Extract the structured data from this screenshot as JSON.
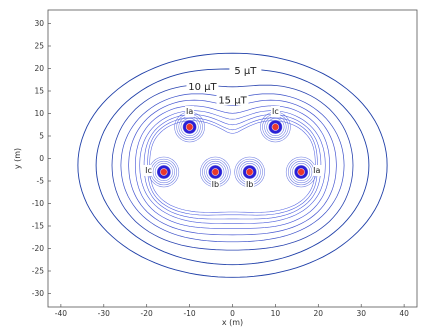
{
  "chart_data": {
    "type": "contour",
    "xlabel": "x (m)",
    "ylabel": "y (m)",
    "xlim": [
      -43,
      43
    ],
    "ylim": [
      -33,
      33
    ],
    "x_ticks": [
      -40,
      -30,
      -20,
      -10,
      0,
      10,
      20,
      30,
      40
    ],
    "y_ticks": [
      -30,
      -25,
      -20,
      -15,
      -10,
      -5,
      0,
      5,
      10,
      15,
      20,
      25,
      30
    ],
    "grid": false,
    "conductors": [
      {
        "label": "Ia",
        "x": -10,
        "y": 7
      },
      {
        "label": "Ic",
        "x": 10,
        "y": 7
      },
      {
        "label": "Ic",
        "x": -16,
        "y": -3
      },
      {
        "label": "Ib",
        "x": -4,
        "y": -3
      },
      {
        "label": "Ib",
        "x": 4,
        "y": -3
      },
      {
        "label": "Ia",
        "x": 16,
        "y": -3
      }
    ],
    "contour_labels": [
      {
        "text": "5 µT",
        "x": 3,
        "y": 19
      },
      {
        "text": "10 µT",
        "x": -7,
        "y": 15.5
      },
      {
        "text": "15 µT",
        "x": 0,
        "y": 12.5
      }
    ],
    "colors": {
      "outer_contours": "#1f3fa8",
      "inner_contours": "#4a5ad8",
      "conductor_core": "#e8372c",
      "conductor_glow": "#2a1fd6"
    }
  }
}
